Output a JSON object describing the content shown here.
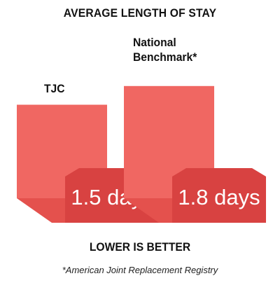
{
  "colors": {
    "bar_front": "#f06762",
    "bar_shadow": "#e4514d",
    "tag": "#d84241",
    "tag_side": "#c93a39",
    "text": "#111111",
    "value_text": "#ffffff"
  },
  "chart_data": {
    "type": "bar",
    "title": "AVERAGE LENGTH OF STAY",
    "categories": [
      "TJC",
      "National\nBenchmark*"
    ],
    "values": [
      1.5,
      1.8
    ],
    "value_labels": [
      "1.5 days",
      "1.8 days"
    ],
    "unit": "days",
    "xlabel": "",
    "ylabel": "",
    "grid": false,
    "legend": "none",
    "annotation": "LOWER IS BETTER",
    "footnote": "*American Joint Replacement Registry"
  }
}
